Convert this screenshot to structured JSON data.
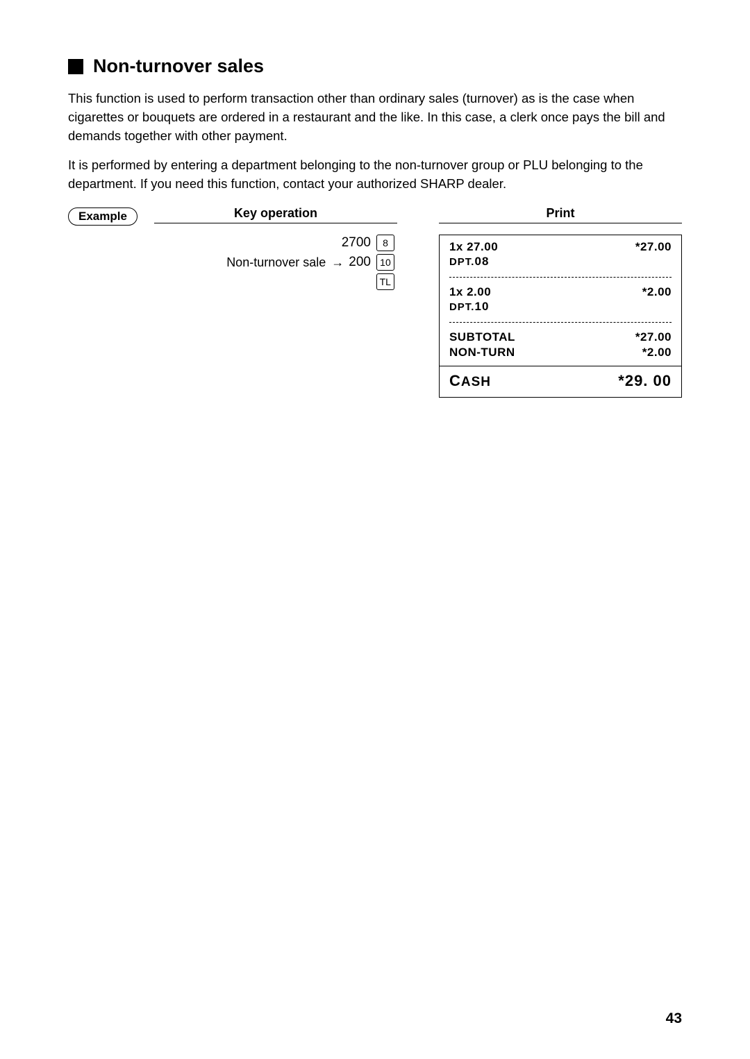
{
  "section": {
    "title": "Non-turnover sales",
    "paragraphs": [
      "This function is used to perform transaction other than ordinary sales (turnover) as is the case when cigarettes or bouquets are ordered in a restaurant and the like. In this case, a clerk once pays the bill and demands together with other payment.",
      "It is performed by entering a department belonging to the non-turnover group or PLU belonging to the department. If you need this function, contact your authorized SHARP dealer."
    ]
  },
  "example_label": "Example",
  "columns": {
    "key_operation_header": "Key operation",
    "print_header": "Print"
  },
  "keyops": {
    "line1": {
      "value": "2700",
      "key": "8"
    },
    "line2": {
      "label": "Non-turnover sale",
      "arrow": "→",
      "value": "200",
      "key": "10"
    },
    "line3": {
      "key": "TL"
    }
  },
  "receipt": {
    "items": [
      {
        "qty_price": "1x 27.00",
        "dpt_prefix": "DPT.",
        "dpt_num": "08",
        "amount": "*27.00"
      },
      {
        "qty_price": "1x 2.00",
        "dpt_prefix": "DPT.",
        "dpt_num": "10",
        "amount": "*2.00"
      }
    ],
    "subtotal": {
      "label1": "SUBTOTAL",
      "amount1": "*27.00",
      "label2": "NON-TURN",
      "amount2": "*2.00"
    },
    "cash": {
      "label_first": "C",
      "label_rest": "ASH",
      "amount": "*29. 00"
    }
  },
  "page_number": "43",
  "colors": {
    "text": "#000000",
    "background": "#ffffff"
  }
}
